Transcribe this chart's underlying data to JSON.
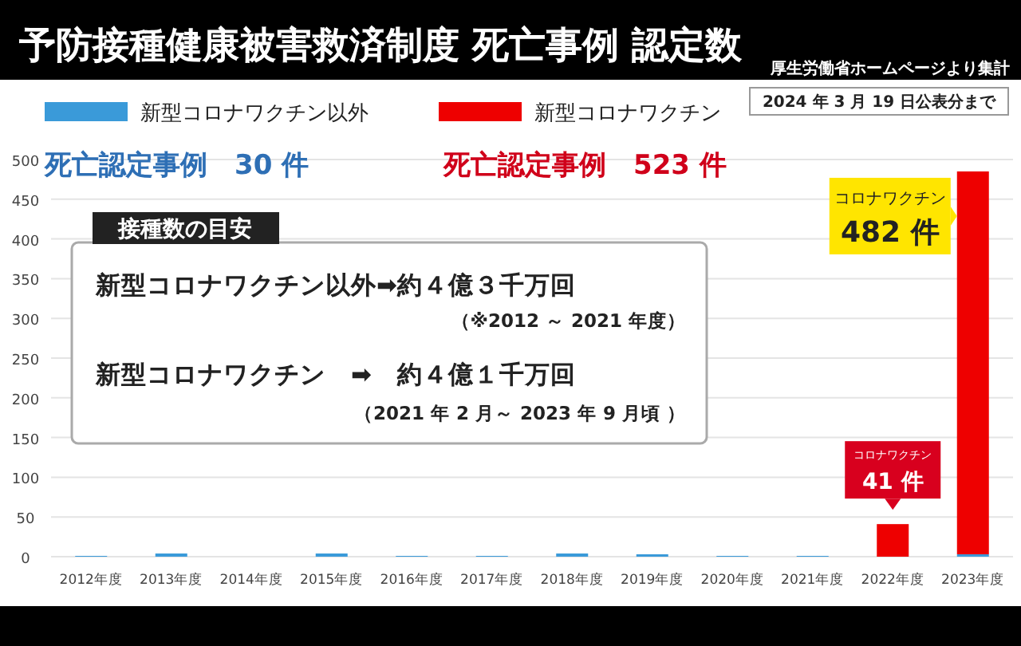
{
  "chart_data": {
    "type": "bar",
    "title": "予防接種健康被害救済制度 死亡事例 認定数",
    "categories": [
      "2012年度",
      "2013年度",
      "2014年度",
      "2015年度",
      "2016年度",
      "2017年度",
      "2018年度",
      "2019年度",
      "2020年度",
      "2021年度",
      "2022年度",
      "2023年度"
    ],
    "stacked": true,
    "series": [
      {
        "name": "新型コロナワクチン以外",
        "color": "#3a9ad9",
        "values": [
          1,
          4,
          0,
          4,
          1,
          1,
          4,
          3,
          1,
          1,
          0,
          3
        ]
      },
      {
        "name": "新型コロナワクチン",
        "color": "#ee0000",
        "values": [
          0,
          0,
          0,
          0,
          0,
          0,
          0,
          0,
          0,
          0,
          41,
          482
        ],
        "value_labels": [
          null,
          null,
          null,
          null,
          null,
          null,
          null,
          null,
          null,
          null,
          "コロナワクチン\n41 件",
          "コロナワクチン\n482 件"
        ]
      }
    ],
    "ylim": [
      0,
      500
    ],
    "yticks": [
      0,
      50,
      100,
      150,
      200,
      250,
      300,
      350,
      400,
      450,
      500
    ],
    "grid": "y",
    "legend": "top",
    "annotations": [
      "厚生労働省ホームページより集計",
      "2024 年 3 月 19 日公表分まで",
      "死亡認定事例　30 件",
      "死亡認定事例　523 件",
      "接種数の目安",
      "新型コロナワクチン以外➡約４億３千万回",
      "（※2012 ～ 2021 年度）",
      "新型コロナワクチン　➡　約４億１千万回",
      "（2021 年 2 月～ 2023 年 9 月頃 ）"
    ]
  }
}
